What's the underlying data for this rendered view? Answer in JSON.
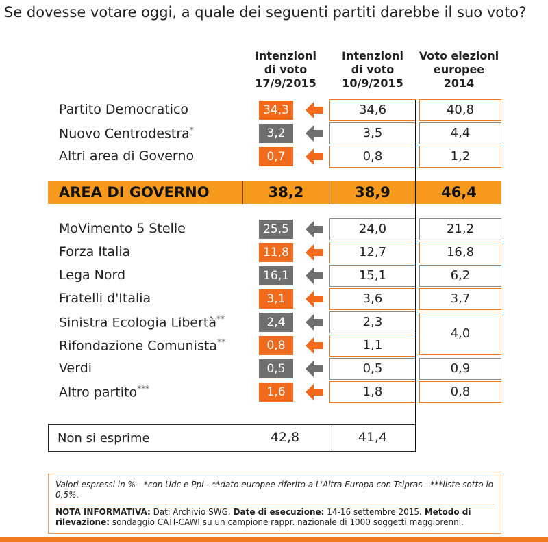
{
  "title": "Se dovesse votare oggi, a quale dei seguenti partiti darebbe il suo voto?",
  "colors": {
    "orange": "#f26a1b",
    "gray": "#6f6f6f",
    "band": "#f79a1e",
    "border_orange": "#f07820",
    "border_gray": "#888888"
  },
  "chart_data": {
    "type": "table",
    "columns": [
      [
        "Intenzioni",
        "di voto",
        "17/9/2015"
      ],
      [
        "Intenzioni",
        "di voto",
        "10/9/2015"
      ],
      [
        "Voto elezioni",
        "europee",
        "2014"
      ]
    ],
    "group1": [
      {
        "name": "Partito Democratico",
        "note": "",
        "v1": "34,3",
        "v2": "34,6",
        "v3": "40,8",
        "trend": "up"
      },
      {
        "name": "Nuovo Centrodestra",
        "note": "*",
        "v1": "3,2",
        "v2": "3,5",
        "v3": "4,4",
        "trend": "down"
      },
      {
        "name": "Altri area di Governo",
        "note": "",
        "v1": "0,7",
        "v2": "0,8",
        "v3": "1,2",
        "trend": "up"
      }
    ],
    "area": {
      "label": "AREA DI GOVERNO",
      "v1": "38,2",
      "v2": "38,9",
      "v3": "46,4"
    },
    "group2": [
      {
        "name": "MoVimento 5 Stelle",
        "note": "",
        "v1": "25,5",
        "v2": "24,0",
        "v3": "21,2",
        "trend": "down"
      },
      {
        "name": "Forza Italia",
        "note": "",
        "v1": "11,8",
        "v2": "12,7",
        "v3": "16,8",
        "trend": "up"
      },
      {
        "name": "Lega Nord",
        "note": "",
        "v1": "16,1",
        "v2": "15,1",
        "v3": "6,2",
        "trend": "down"
      },
      {
        "name": "Fratelli d'Italia",
        "note": "",
        "v1": "3,1",
        "v2": "3,6",
        "v3": "3,7",
        "trend": "up"
      },
      {
        "name": "Sinistra Ecologia Libertà",
        "note": "**",
        "v1": "2,4",
        "v2": "2,3",
        "v3": "",
        "trend": "down"
      },
      {
        "name": "Rifondazione Comunista",
        "note": "**",
        "v1": "0,8",
        "v2": "1,1",
        "v3": "",
        "trend": "up"
      },
      {
        "name": "Verdi",
        "note": "",
        "v1": "0,5",
        "v2": "0,5",
        "v3": "0,9",
        "trend": "down"
      },
      {
        "name": "Altro partito",
        "note": "***",
        "v1": "1,6",
        "v2": "1,8",
        "v3": "0,8",
        "trend": "up"
      }
    ],
    "merged_v3": "4,0",
    "non_si_esprime": {
      "label": "Non si esprime",
      "v1": "42,8",
      "v2": "41,4"
    }
  },
  "footer": {
    "notes": "Valori espressi in % - *con Udc e Ppi  - **dato europee riferito a L'Altra Europa con Tsipras - ***liste sotto lo 0,5%.",
    "nota_label": "NOTA INFORMATIVA:",
    "nota_text": " Dati Archivio SWG. ",
    "date_label": "Date di esecuzione:",
    "date_text": " 14-16 settembre 2015. ",
    "metodo_label": "Metodo di rilevazione:",
    "metodo_text": " sondaggio CATI-CAWI su un campione rappr. nazionale di 1000 soggetti maggiorenni."
  }
}
